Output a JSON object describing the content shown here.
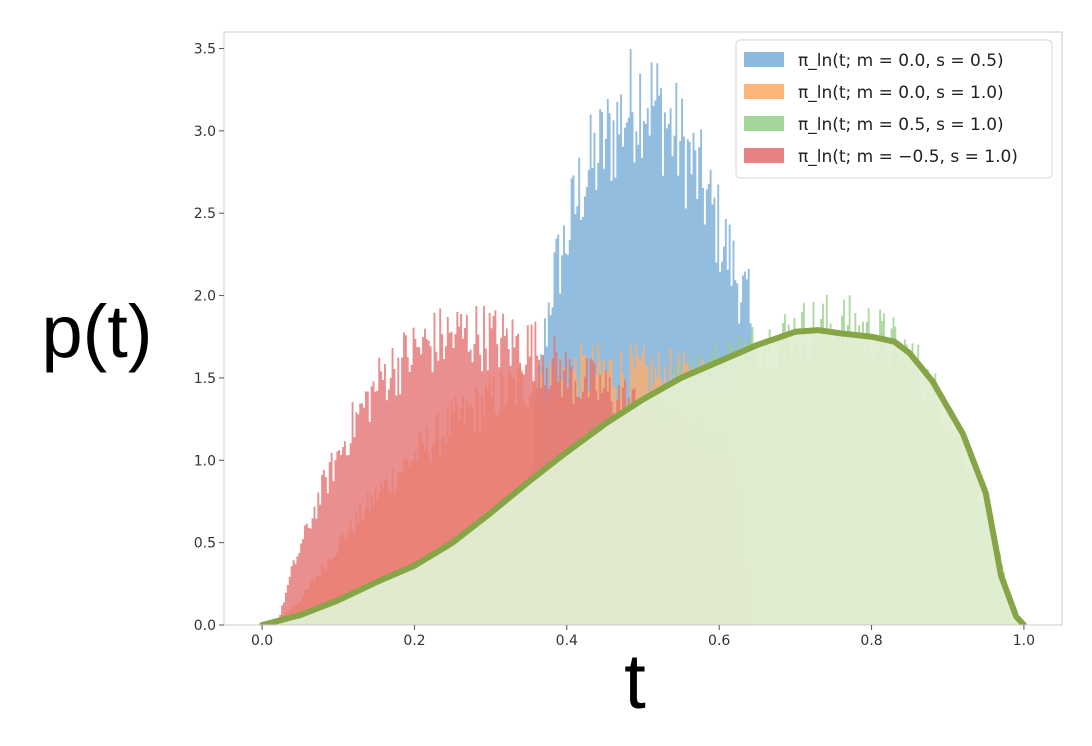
{
  "chart_data": {
    "type": "area",
    "title": "",
    "xlabel": "t",
    "ylabel": "p(t)",
    "xlim": [
      -0.05,
      1.05
    ],
    "ylim": [
      0.0,
      3.6
    ],
    "grid": false,
    "legend_placement": "top-right",
    "x_ticks": [
      "0.0",
      "0.2",
      "0.4",
      "0.6",
      "0.8",
      "1.0"
    ],
    "y_ticks": [
      "0.0",
      "0.5",
      "1.0",
      "1.5",
      "2.0",
      "2.5",
      "3.0",
      "3.5"
    ],
    "histograms": [
      {
        "name": "π_ln(t; m = 0.0, s = 0.5)",
        "color": "#7fb2d8",
        "density": [
          {
            "t": 0.34,
            "p": 0.0
          },
          {
            "t": 0.36,
            "p": 1.35
          },
          {
            "t": 0.38,
            "p": 2.1
          },
          {
            "t": 0.4,
            "p": 2.4
          },
          {
            "t": 0.42,
            "p": 2.75
          },
          {
            "t": 0.44,
            "p": 2.9
          },
          {
            "t": 0.46,
            "p": 3.05
          },
          {
            "t": 0.48,
            "p": 3.2
          },
          {
            "t": 0.5,
            "p": 3.3
          },
          {
            "t": 0.52,
            "p": 3.2
          },
          {
            "t": 0.54,
            "p": 3.05
          },
          {
            "t": 0.56,
            "p": 2.9
          },
          {
            "t": 0.58,
            "p": 2.7
          },
          {
            "t": 0.6,
            "p": 2.45
          },
          {
            "t": 0.62,
            "p": 2.2
          },
          {
            "t": 0.64,
            "p": 1.95
          },
          {
            "t": 0.66,
            "p": 0.0
          }
        ]
      },
      {
        "name": "π_ln(t; m = 0.0, s = 1.0)",
        "color": "#fdae6b",
        "density": [
          {
            "t": 0.01,
            "p": 0.0
          },
          {
            "t": 0.05,
            "p": 0.15
          },
          {
            "t": 0.1,
            "p": 0.5
          },
          {
            "t": 0.15,
            "p": 0.8
          },
          {
            "t": 0.2,
            "p": 1.05
          },
          {
            "t": 0.25,
            "p": 1.25
          },
          {
            "t": 0.3,
            "p": 1.4
          },
          {
            "t": 0.35,
            "p": 1.5
          },
          {
            "t": 0.4,
            "p": 1.55
          },
          {
            "t": 0.45,
            "p": 1.57
          },
          {
            "t": 0.5,
            "p": 1.55
          },
          {
            "t": 0.55,
            "p": 1.52
          },
          {
            "t": 0.6,
            "p": 1.5
          },
          {
            "t": 0.65,
            "p": 1.6
          },
          {
            "t": 0.7,
            "p": 1.6
          },
          {
            "t": 0.75,
            "p": 1.5
          },
          {
            "t": 0.8,
            "p": 1.3
          },
          {
            "t": 0.85,
            "p": 1.05
          },
          {
            "t": 0.9,
            "p": 0.75
          },
          {
            "t": 0.95,
            "p": 0.35
          },
          {
            "t": 0.99,
            "p": 0.0
          }
        ]
      },
      {
        "name": "π_ln(t; m = 0.5, s = 1.0)",
        "color": "#98d08c",
        "density": [
          {
            "t": 0.01,
            "p": 0.0
          },
          {
            "t": 0.05,
            "p": 0.05
          },
          {
            "t": 0.1,
            "p": 0.15
          },
          {
            "t": 0.15,
            "p": 0.25
          },
          {
            "t": 0.2,
            "p": 0.35
          },
          {
            "t": 0.25,
            "p": 0.5
          },
          {
            "t": 0.3,
            "p": 0.65
          },
          {
            "t": 0.35,
            "p": 0.85
          },
          {
            "t": 0.4,
            "p": 1.05
          },
          {
            "t": 0.45,
            "p": 1.2
          },
          {
            "t": 0.5,
            "p": 1.35
          },
          {
            "t": 0.55,
            "p": 1.48
          },
          {
            "t": 0.6,
            "p": 1.6
          },
          {
            "t": 0.65,
            "p": 1.7
          },
          {
            "t": 0.7,
            "p": 1.8
          },
          {
            "t": 0.75,
            "p": 1.85
          },
          {
            "t": 0.8,
            "p": 1.8
          },
          {
            "t": 0.85,
            "p": 1.65
          },
          {
            "t": 0.9,
            "p": 1.3
          },
          {
            "t": 0.95,
            "p": 0.75
          },
          {
            "t": 0.99,
            "p": 0.0
          }
        ]
      },
      {
        "name": "π_ln(t; m = −0.5, s = 1.0)",
        "color": "#e57373",
        "density": [
          {
            "t": 0.02,
            "p": 0.0
          },
          {
            "t": 0.04,
            "p": 0.35
          },
          {
            "t": 0.06,
            "p": 0.6
          },
          {
            "t": 0.08,
            "p": 0.85
          },
          {
            "t": 0.1,
            "p": 1.05
          },
          {
            "t": 0.12,
            "p": 1.25
          },
          {
            "t": 0.14,
            "p": 1.4
          },
          {
            "t": 0.16,
            "p": 1.55
          },
          {
            "t": 0.18,
            "p": 1.62
          },
          {
            "t": 0.2,
            "p": 1.7
          },
          {
            "t": 0.22,
            "p": 1.74
          },
          {
            "t": 0.24,
            "p": 1.78
          },
          {
            "t": 0.26,
            "p": 1.8
          },
          {
            "t": 0.28,
            "p": 1.8
          },
          {
            "t": 0.3,
            "p": 1.78
          },
          {
            "t": 0.32,
            "p": 1.75
          },
          {
            "t": 0.34,
            "p": 1.73
          },
          {
            "t": 0.36,
            "p": 1.7
          },
          {
            "t": 0.38,
            "p": 1.62
          },
          {
            "t": 0.4,
            "p": 1.55
          },
          {
            "t": 0.42,
            "p": 1.5
          },
          {
            "t": 0.44,
            "p": 1.47
          },
          {
            "t": 0.46,
            "p": 1.43
          },
          {
            "t": 0.48,
            "p": 1.38
          },
          {
            "t": 0.5,
            "p": 1.3
          },
          {
            "t": 0.52,
            "p": 1.25
          },
          {
            "t": 0.54,
            "p": 1.2
          },
          {
            "t": 0.56,
            "p": 1.15
          },
          {
            "t": 0.58,
            "p": 1.1
          },
          {
            "t": 0.6,
            "p": 1.05
          },
          {
            "t": 0.62,
            "p": 1.0
          },
          {
            "t": 0.64,
            "p": 0.0
          }
        ]
      }
    ],
    "curve": {
      "color": "#86a546",
      "fill": "#e2eed3",
      "points": [
        {
          "t": 0.0,
          "p": 0.0
        },
        {
          "t": 0.05,
          "p": 0.06
        },
        {
          "t": 0.1,
          "p": 0.15
        },
        {
          "t": 0.15,
          "p": 0.26
        },
        {
          "t": 0.2,
          "p": 0.36
        },
        {
          "t": 0.25,
          "p": 0.5
        },
        {
          "t": 0.3,
          "p": 0.68
        },
        {
          "t": 0.35,
          "p": 0.87
        },
        {
          "t": 0.4,
          "p": 1.05
        },
        {
          "t": 0.45,
          "p": 1.22
        },
        {
          "t": 0.5,
          "p": 1.37
        },
        {
          "t": 0.55,
          "p": 1.5
        },
        {
          "t": 0.6,
          "p": 1.6
        },
        {
          "t": 0.65,
          "p": 1.7
        },
        {
          "t": 0.7,
          "p": 1.78
        },
        {
          "t": 0.73,
          "p": 1.79
        },
        {
          "t": 0.76,
          "p": 1.77
        },
        {
          "t": 0.8,
          "p": 1.75
        },
        {
          "t": 0.83,
          "p": 1.72
        },
        {
          "t": 0.85,
          "p": 1.65
        },
        {
          "t": 0.88,
          "p": 1.48
        },
        {
          "t": 0.92,
          "p": 1.16
        },
        {
          "t": 0.95,
          "p": 0.8
        },
        {
          "t": 0.97,
          "p": 0.3
        },
        {
          "t": 0.99,
          "p": 0.05
        },
        {
          "t": 1.0,
          "p": 0.0
        }
      ]
    }
  }
}
